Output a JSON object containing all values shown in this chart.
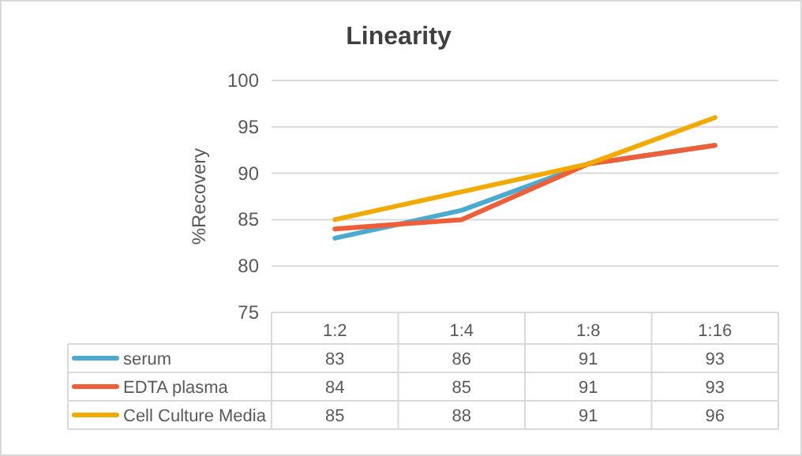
{
  "chart_data": {
    "type": "line",
    "title": "Linearity",
    "ylabel": "%Recovery",
    "categories": [
      "1:2",
      "1:4",
      "1:8",
      "1:16"
    ],
    "series": [
      {
        "name": "serum",
        "color": "#4aaad0",
        "values": [
          83,
          86,
          91,
          93
        ]
      },
      {
        "name": "EDTA plasma",
        "color": "#ee5e38",
        "values": [
          84,
          85,
          91,
          93
        ]
      },
      {
        "name": "Cell Culture Media",
        "color": "#f2aa00",
        "values": [
          85,
          88,
          91,
          96
        ]
      }
    ],
    "ylim": [
      75,
      100
    ],
    "yticks": [
      75,
      80,
      85,
      90,
      95,
      100
    ],
    "grid": "y",
    "data_labels": true,
    "legend": "bottom",
    "marker": "none",
    "line_style": "solid"
  }
}
